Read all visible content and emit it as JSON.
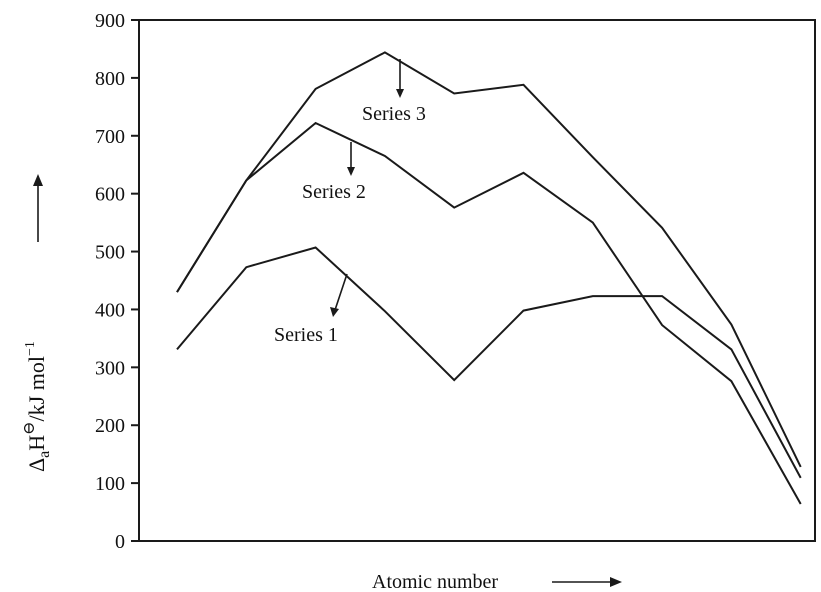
{
  "chart_data": {
    "type": "line",
    "title": "",
    "xlabel": "Atomic number",
    "ylabel_parts": {
      "delta": "Δ",
      "sub": "a",
      "main": "H",
      "sup": "⊖",
      "unit": "/kJ mol",
      "unit_sup": "−1"
    },
    "ylim": [
      0,
      900
    ],
    "yticks": [
      0,
      100,
      200,
      300,
      400,
      500,
      600,
      700,
      800,
      900
    ],
    "x": [
      1,
      2,
      3,
      4,
      5,
      6,
      7,
      8,
      9,
      10
    ],
    "grid": false,
    "series": [
      {
        "name": "Series 1",
        "values": [
          331,
          473,
          507,
          397,
          278,
          398,
          423,
          423,
          331,
          109
        ]
      },
      {
        "name": "Series 2",
        "values": [
          430,
          623,
          722,
          665,
          576,
          636,
          550,
          373,
          276,
          64
        ]
      },
      {
        "name": "Series 3",
        "values": [
          430,
          623,
          781,
          844,
          773,
          788,
          663,
          541,
          374,
          128
        ]
      }
    ]
  }
}
